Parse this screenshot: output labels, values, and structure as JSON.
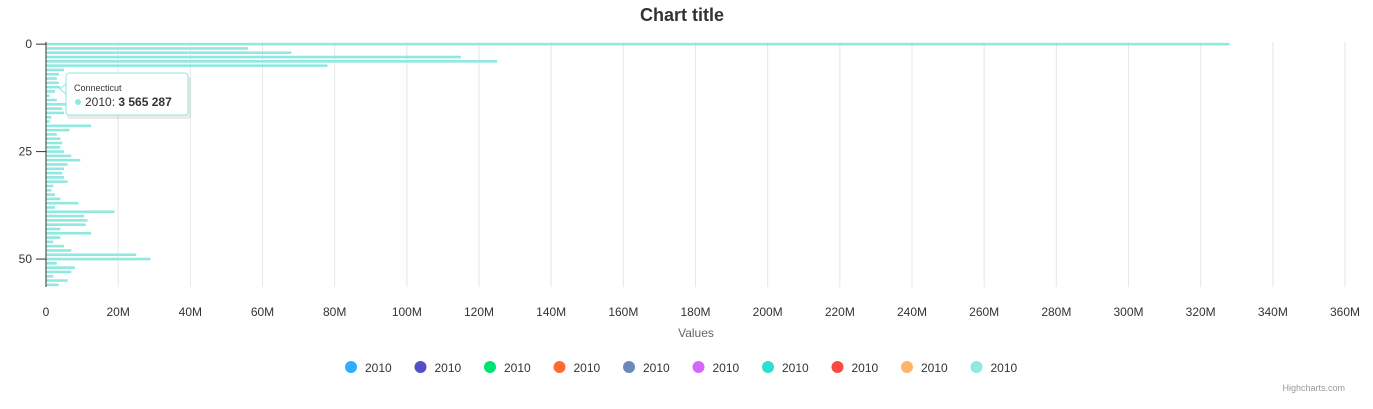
{
  "chart_data": {
    "type": "bar",
    "orientation": "horizontal",
    "title": "Chart title",
    "xlabel": "Values",
    "ylabel": "",
    "value_ticks": [
      "0",
      "20M",
      "40M",
      "60M",
      "80M",
      "100M",
      "120M",
      "140M",
      "160M",
      "180M",
      "200M",
      "220M",
      "240M",
      "260M",
      "280M",
      "300M",
      "320M",
      "340M",
      "360M"
    ],
    "value_range": [
      0,
      360000000
    ],
    "category_ticks": [
      "0",
      "25",
      "50"
    ],
    "category_range": [
      -0.5,
      56.5
    ],
    "grid": "vertical",
    "series": [
      {
        "name": "2010",
        "color": "#91e8e1",
        "values": [
          328000000,
          56000000,
          68000000,
          115000000,
          125000000,
          78000000,
          5000000,
          3600000,
          3000000,
          3565287,
          4000000,
          2500000,
          1000000,
          3000000,
          5500000,
          4500000,
          5000000,
          1500000,
          1000000,
          12500000,
          6500000,
          3000000,
          4000000,
          4500000,
          4000000,
          5000000,
          7000000,
          9500000,
          6000000,
          5000000,
          4500000,
          5000000,
          6000000,
          2000000,
          1500000,
          2500000,
          4000000,
          9000000,
          2500000,
          19000000,
          10500000,
          11500000,
          11000000,
          4000000,
          12500000,
          4000000,
          2000000,
          5000000,
          7000000,
          25000000,
          29000000,
          3000000,
          8000000,
          7000000,
          2000000,
          6000000,
          3500000
        ]
      }
    ],
    "legend": {
      "placement": "bottom-center",
      "items": [
        {
          "name": "2010",
          "color": "#2caffe"
        },
        {
          "name": "2010",
          "color": "#544fc5"
        },
        {
          "name": "2010",
          "color": "#00e272"
        },
        {
          "name": "2010",
          "color": "#fe6a35"
        },
        {
          "name": "2010",
          "color": "#6b8abc"
        },
        {
          "name": "2010",
          "color": "#d568fb"
        },
        {
          "name": "2010",
          "color": "#2ee0ca"
        },
        {
          "name": "2010",
          "color": "#fa4b42"
        },
        {
          "name": "2010",
          "color": "#feb56a"
        },
        {
          "name": "2010",
          "color": "#91e8e1"
        }
      ]
    },
    "tooltip": {
      "category": "Connecticut",
      "series_label": "2010: ",
      "value_text": "3 565 287",
      "category_index": 9
    },
    "credits": "Highcharts.com"
  }
}
